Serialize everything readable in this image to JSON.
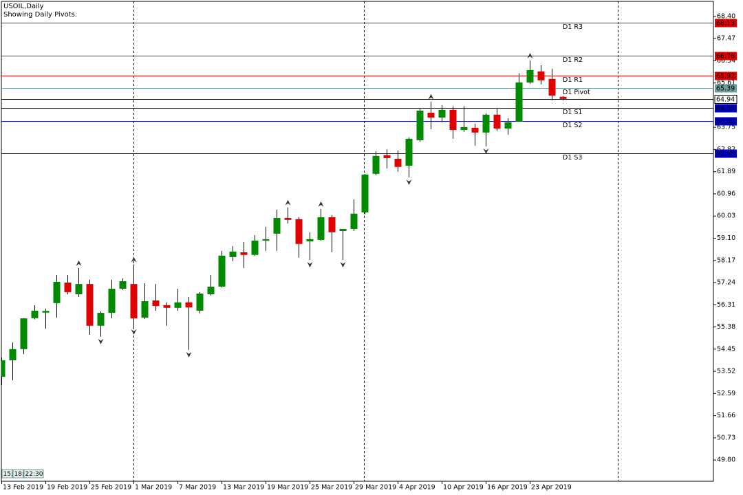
{
  "chart_data": {
    "type": "candlestick",
    "title": "USOIL,Daily",
    "subtitle": "Showing Daily Pivots.",
    "categories": [
      "13 Feb 2019",
      null,
      null,
      null,
      "19 Feb 2019",
      null,
      null,
      null,
      "25 Feb 2019",
      null,
      null,
      null,
      "1 Mar 2019",
      null,
      null,
      null,
      "7 Mar 2019",
      null,
      null,
      null,
      "13 Mar 2019",
      null,
      null,
      null,
      "19 Mar 2019",
      null,
      null,
      null,
      "25 Mar 2019",
      null,
      null,
      null,
      "29 Mar 2019",
      null,
      null,
      null,
      "4 Apr 2019",
      null,
      null,
      null,
      "10 Apr 2019",
      null,
      null,
      null,
      "16 Apr 2019",
      null,
      null,
      null,
      "23 Apr 2019",
      null,
      null,
      null
    ],
    "open": [
      53.29,
      53.98,
      54.45,
      55.75,
      55.98,
      56.38,
      57.24,
      56.75,
      57.18,
      55.43,
      55.97,
      56.98,
      57.18,
      55.77,
      56.49,
      56.29,
      56.18,
      56.41,
      56.06,
      56.75,
      57.07,
      58.31,
      58.51,
      58.4,
      59.0,
      59.29,
      59.95,
      59.9,
      58.97,
      59.03,
      59.98,
      59.4,
      59.49,
      60.18,
      61.8,
      62.58,
      62.43,
      62.14,
      63.21,
      64.36,
      64.16,
      64.48,
      63.64,
      63.73,
      63.53,
      64.28,
      63.7,
      63.99,
      65.63,
      66.09,
      65.78,
      65.03
    ],
    "high": [
      54.1,
      54.73,
      55.75,
      56.29,
      56.15,
      57.56,
      57.56,
      57.85,
      57.36,
      56.03,
      57.36,
      57.42,
      58.0,
      57.21,
      57.18,
      56.41,
      56.98,
      56.64,
      56.84,
      57.56,
      58.57,
      58.77,
      58.94,
      59.23,
      59.58,
      60.3,
      60.39,
      59.98,
      59.35,
      60.33,
      60.07,
      59.49,
      60.73,
      61.8,
      62.75,
      62.82,
      62.78,
      63.33,
      64.54,
      64.83,
      64.68,
      64.62,
      64.62,
      63.9,
      64.33,
      64.57,
      64.13,
      66.01,
      66.55,
      66.35,
      66.21,
      65.06
    ],
    "low": [
      52.95,
      53.15,
      54.24,
      55.7,
      55.31,
      55.77,
      56.75,
      56.64,
      55.05,
      54.97,
      55.74,
      56.93,
      55.37,
      55.71,
      56.06,
      55.43,
      56.06,
      54.42,
      55.95,
      56.7,
      57.04,
      58.14,
      57.85,
      58.37,
      58.57,
      58.57,
      59.72,
      58.28,
      58.19,
      59.0,
      58.51,
      58.19,
      59.4,
      60.1,
      61.74,
      62.03,
      61.89,
      61.65,
      63.15,
      63.67,
      63.96,
      63.27,
      63.56,
      62.98,
      62.95,
      63.61,
      63.44,
      63.99,
      65.57,
      65.55,
      64.88,
      64.88
    ],
    "close": [
      53.98,
      54.45,
      55.74,
      56.06,
      56.05,
      57.27,
      56.84,
      57.18,
      55.43,
      55.97,
      56.98,
      57.3,
      55.74,
      56.46,
      56.26,
      56.18,
      56.41,
      56.2,
      56.78,
      57.07,
      58.37,
      58.54,
      58.4,
      59.0,
      59.06,
      59.95,
      59.87,
      58.86,
      59.06,
      59.98,
      59.35,
      59.49,
      60.13,
      61.77,
      62.55,
      62.46,
      62.09,
      63.27,
      64.45,
      64.16,
      64.48,
      63.64,
      63.76,
      63.53,
      64.28,
      63.7,
      63.96,
      65.63,
      66.15,
      65.72,
      65.08,
      64.94
    ],
    "up_color": "#008a00",
    "down_color": "#e00000",
    "fractals_up": [
      7,
      12,
      26,
      29,
      39,
      48
    ],
    "fractals_down": [
      9,
      12,
      17,
      28,
      31,
      37,
      44
    ],
    "pivots": [
      {
        "name": "D1 R3",
        "value": 68.13,
        "color": "#e00000"
      },
      {
        "name": "D1 R2",
        "value": 66.76,
        "color": "#e00000"
      },
      {
        "name": "D1 R1",
        "value": 65.92,
        "color": "#e00000"
      },
      {
        "name": "D1 Pivot",
        "value": 65.39,
        "color": "#6f9c9c"
      },
      {
        "name": "D1 S1",
        "value": 64.55,
        "color": "#0000c8"
      },
      {
        "name": "D1 S2",
        "value": 64.02,
        "color": "#0000c8"
      },
      {
        "name": "D1 S3",
        "value": 62.65,
        "color": "#0000c8"
      }
    ],
    "last_price": 64.94,
    "ylim": [
      48.91,
      69.03
    ],
    "yticks": [
      {
        "value": 68.4,
        "label": "68.40"
      },
      {
        "value": 67.47,
        "label": "67.47"
      },
      {
        "value": 66.54,
        "label": "66.54"
      },
      {
        "value": 65.61,
        "label": "65.61"
      },
      {
        "value": 63.75,
        "label": "63.75"
      },
      {
        "value": 62.82,
        "label": "62.82"
      },
      {
        "value": 61.89,
        "label": "61.89"
      },
      {
        "value": 60.96,
        "label": "60.96"
      },
      {
        "value": 60.03,
        "label": "60.03"
      },
      {
        "value": 59.1,
        "label": "59.10"
      },
      {
        "value": 58.17,
        "label": "58.17"
      },
      {
        "value": 57.24,
        "label": "57.24"
      },
      {
        "value": 56.31,
        "label": "56.31"
      },
      {
        "value": 55.38,
        "label": "55.38"
      },
      {
        "value": 54.45,
        "label": "54.45"
      },
      {
        "value": 53.52,
        "label": "53.52"
      },
      {
        "value": 52.59,
        "label": "52.59"
      },
      {
        "value": 51.66,
        "label": "51.66"
      },
      {
        "value": 50.73,
        "label": "50.73"
      },
      {
        "value": 49.8,
        "label": "49.80"
      }
    ],
    "grid": false
  },
  "timer": [
    "15:",
    "18:",
    "22:30"
  ]
}
